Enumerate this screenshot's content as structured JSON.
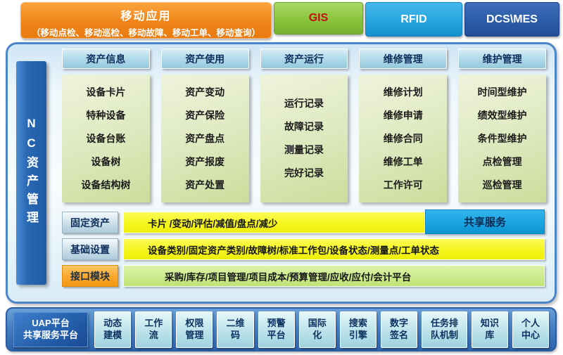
{
  "top": {
    "mobile": {
      "title": "移动应用",
      "subtitle": "（移动点检、移动巡检、移动故障、移动工单、移动查询）"
    },
    "gis_label": "GIS",
    "rfid_label": "RFID",
    "dcs_label": "DCS\\MES"
  },
  "side_label": "NC资产管理",
  "columns": [
    {
      "header": "资产信息",
      "items": [
        "设备卡片",
        "特种设备",
        "设备台账",
        "设备树",
        "设备结构树"
      ]
    },
    {
      "header": "资产使用",
      "items": [
        "资产变动",
        "资产保险",
        "资产盘点",
        "资产报废",
        "资产处置"
      ]
    },
    {
      "header": "资产运行",
      "items": [
        "运行记录",
        "故障记录",
        "测量记录",
        "完好记录"
      ]
    },
    {
      "header": "维修管理",
      "items": [
        "维修计划",
        "维修申请",
        "维修合同",
        "维修工单",
        "工作许可"
      ]
    },
    {
      "header": "维护管理",
      "items": [
        "时间型维护",
        "绩效型维护",
        "条件型维护",
        "点检管理",
        "巡检管理"
      ]
    }
  ],
  "rows": [
    {
      "label": "固定资产",
      "content": "卡片 /变动/评估/减值/盘点/减少",
      "extra": "共享服务"
    },
    {
      "label": "基础设置",
      "content": "设备类别/固定资产类别/故障树/标准工作包/设备状态/测量点/工单状态"
    },
    {
      "label": "接口模块",
      "content": "采购/库存/项目管理/项目成本/预算管理/应收/应付/会计平台"
    }
  ],
  "bottom": {
    "platform": {
      "line1": "UAP平台",
      "line2": "共享服务平台"
    },
    "items": [
      {
        "line1": "动态",
        "line2": "建模"
      },
      {
        "line1": "工作",
        "line2": "流"
      },
      {
        "line1": "权限",
        "line2": "管理"
      },
      {
        "line1": "二维",
        "line2": "码"
      },
      {
        "line1": "预警",
        "line2": "平台"
      },
      {
        "line1": "国际",
        "line2": "化"
      },
      {
        "line1": "搜索",
        "line2": "引擎"
      },
      {
        "line1": "数字",
        "line2": "签名"
      },
      {
        "line1": "任务排",
        "line2": "队机制"
      },
      {
        "line1": "知识",
        "line2": "库"
      },
      {
        "line1": "个人",
        "line2": "中心"
      }
    ]
  },
  "colors": {
    "banner_orange": "#F08519",
    "gis_green": "#8DC63F",
    "gis_text_red": "#C21010",
    "rfid_blue": "#29A9E1",
    "dcs_navy": "#2B5CA8",
    "container_border_blue": "#4A86C8",
    "sidebar_blue": "#2A68B4",
    "column_header_blue": "#B3DCEA",
    "column_body_green": "#DDE8BD",
    "bar_yellow": "#F6F622",
    "bar_green": "#CDEB8F",
    "share_blue": "#1BA7E2",
    "bottom_bar_blue": "#4680C2",
    "bottom_box_cyan": "#BFE4EC",
    "uap_navy": "#1A4A94"
  }
}
